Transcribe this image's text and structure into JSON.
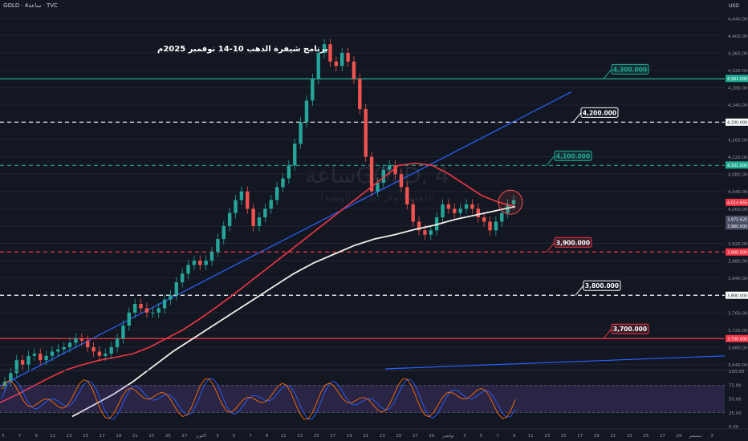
{
  "header": {
    "symbol_line": "GOLD · 4ساعة · TVC",
    "currency": "USD"
  },
  "title": "برنامج شيفرة الذهب 10-14 نوفمبر 2025م",
  "watermark": {
    "symbol": "GOLD, 4ساعة",
    "subtitle": "الذهب (دولار أمريكي/أونصة)"
  },
  "colors": {
    "background": "#131722",
    "up_candle": "#26a69a",
    "down_candle": "#ef5350",
    "ma_fast": "#f23645",
    "ma_slow": "#f0f0e8",
    "trendline": "#2962ff",
    "level_green": "#22ab94",
    "level_red": "#f23645",
    "level_white": "#ffffff",
    "rsi_fill": "#7e57c2"
  },
  "chart_data": {
    "type": "candlestick",
    "y_axis": {
      "range": [
        3630,
        4460
      ],
      "ticks": [
        "4,440.000",
        "4,400.000",
        "4,360.000",
        "4,320.000",
        "4,280.000",
        "4,240.000",
        "4,200.000",
        "4,160.000",
        "4,120.000",
        "4,080.000",
        "4,040.000",
        "4,000.000",
        "3,960.000",
        "3,920.000",
        "3,880.000",
        "3,840.000",
        "3,800.000",
        "3,760.000",
        "3,720.000",
        "3,680.000",
        "3,640.000"
      ]
    },
    "x_axis": {
      "ticks": [
        "5",
        "7",
        "9",
        "11",
        "13",
        "15",
        "17",
        "19",
        "21",
        "23",
        "25",
        "27",
        "أكتوبر",
        "3",
        "5",
        "7",
        "9",
        "11",
        "13",
        "15",
        "17",
        "19",
        "21",
        "23",
        "25",
        "27",
        "29",
        "نوفمبر",
        "3",
        "5",
        "7",
        "9",
        "11",
        "13",
        "15",
        "17",
        "19",
        "21",
        "23",
        "25",
        "27",
        "29",
        "ديسمبر",
        "3"
      ]
    },
    "levels": [
      {
        "label": "4,300.000",
        "value": 4300,
        "style": "solid",
        "color": "#22ab94"
      },
      {
        "label": "4,200.000",
        "value": 4200,
        "style": "dashed",
        "color": "#ffffff"
      },
      {
        "label": "4,100.000",
        "value": 4100,
        "style": "dashed",
        "color": "#22ab94"
      },
      {
        "label": "3,900.000",
        "value": 3900,
        "style": "dashed",
        "color": "#f23645"
      },
      {
        "label": "3,800.000",
        "value": 3800,
        "style": "dashed",
        "color": "#ffffff"
      },
      {
        "label": "3,700.000",
        "value": 3700,
        "style": "solid",
        "color": "#f23645"
      }
    ],
    "axis_badges": [
      {
        "label": "4,301.000",
        "value": 4301,
        "color": "#22ab94"
      },
      {
        "label": "4,200.000",
        "value": 4200,
        "color": "#ffffff"
      },
      {
        "label": "4,101.000",
        "value": 4101,
        "color": "#22ab94"
      },
      {
        "label": "4,014.655",
        "value": 4014.655,
        "color": "#f23645"
      },
      {
        "label": "3,975.625",
        "value": 3975.625,
        "color": "#4a4f66"
      },
      {
        "label": "3,960.000",
        "value": 3960,
        "color": "#4a4f66"
      },
      {
        "label": "3,900.000",
        "value": 3900,
        "color": "#f23645"
      },
      {
        "label": "3,800.000",
        "value": 3800,
        "color": "#ffffff"
      },
      {
        "label": "3,700.000",
        "value": 3700,
        "color": "#f23645"
      }
    ],
    "price_closes": [
      3600,
      3620,
      3650,
      3640,
      3660,
      3665,
      3650,
      3660,
      3670,
      3675,
      3680,
      3690,
      3700,
      3695,
      3680,
      3670,
      3660,
      3665,
      3680,
      3700,
      3730,
      3760,
      3780,
      3770,
      3760,
      3760,
      3770,
      3790,
      3800,
      3830,
      3850,
      3870,
      3880,
      3870,
      3880,
      3900,
      3930,
      3960,
      3990,
      4020,
      4040,
      4000,
      3960,
      3980,
      4000,
      4020,
      4050,
      4070,
      4100,
      4150,
      4200,
      4250,
      4300,
      4360,
      4380,
      4340,
      4330,
      4360,
      4340,
      4300,
      4230,
      4120,
      4040,
      4060,
      4090,
      4100,
      4080,
      4050,
      4010,
      3970,
      3950,
      3940,
      3950,
      3980,
      4010,
      4000,
      3990,
      4000,
      4010,
      4000,
      3980,
      3970,
      3950,
      3970,
      3990,
      4010,
      4020
    ],
    "ma_fast": [
      3552,
      3570,
      3590,
      3610,
      3628,
      3640,
      3650,
      3657,
      3665,
      3680,
      3700,
      3720,
      3745,
      3772,
      3800,
      3830,
      3860,
      3890,
      3920,
      3950,
      3980,
      4010,
      4040,
      4070,
      4100,
      4105,
      4100,
      4080,
      4055,
      4030,
      4015,
      4005
    ],
    "ma_slow": [
      3520,
      3545,
      3570,
      3600,
      3635,
      3670,
      3700,
      3730,
      3760,
      3790,
      3820,
      3850,
      3875,
      3895,
      3915,
      3930,
      3940,
      3952,
      3962,
      3975,
      3985,
      3995,
      4005
    ],
    "trendlines": [
      {
        "from": [
          3590,
          0
        ],
        "to": [
          4270,
          1
        ]
      },
      {
        "from": [
          3530,
          0
        ],
        "to": [
          3660,
          1
        ]
      }
    ],
    "oscillator": {
      "ticks": [
        "100.00",
        "75.00",
        "50.00",
        "25.00",
        "0.00"
      ],
      "band": [
        25,
        75
      ]
    }
  }
}
